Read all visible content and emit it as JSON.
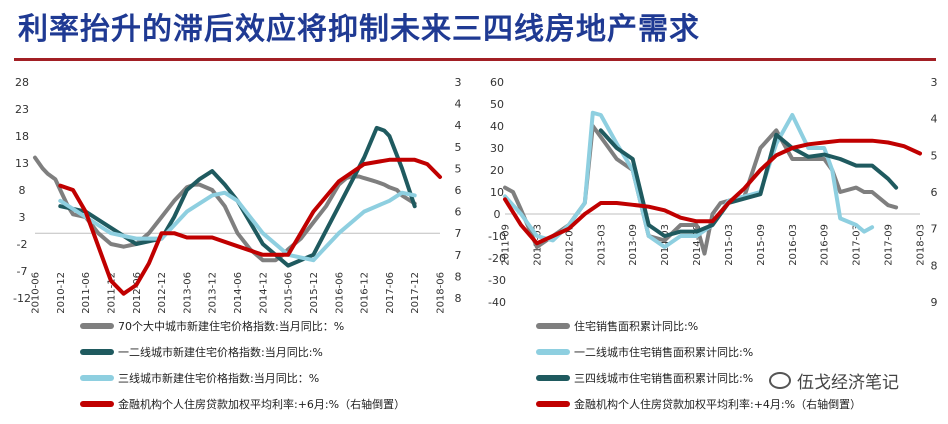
{
  "header": {
    "title": "利率抬升的滞后效应将抑制未来三四线房地产需求"
  },
  "watermark": {
    "text": "伍戈经济笔记",
    "icon": "wechat-icon"
  },
  "colors": {
    "grey": "#7f7f7f",
    "teal": "#1f5a5f",
    "light_blue": "#8ecfe0",
    "red": "#c00000"
  },
  "chart_data": [
    {
      "type": "line",
      "left_axis": {
        "ticks": [
          "28",
          "23",
          "18",
          "13",
          "8",
          "3",
          "-2",
          "-7",
          "-12"
        ],
        "ylim": [
          -12,
          28
        ]
      },
      "right_axis": {
        "ticks": [
          "3",
          "4",
          "4",
          "5",
          "5",
          "6",
          "6",
          "7",
          "7",
          "8",
          "8"
        ],
        "inverted": true,
        "ylim": [
          3,
          8
        ]
      },
      "x_ticks": [
        "2010-06",
        "2010-12",
        "2011-06",
        "2011-12",
        "2012-06",
        "2012-12",
        "2013-06",
        "2013-12",
        "2014-06",
        "2014-12",
        "2015-06",
        "2015-12",
        "2016-06",
        "2016-12",
        "2017-06",
        "2017-12",
        "2018-06"
      ],
      "series": [
        {
          "name": "70个大中城市新建住宅价格指数:当月同比：%",
          "color": "#7f7f7f",
          "axis": "left",
          "x": [
            0,
            0.6,
            1.0,
            1.6,
            2.0,
            2.6,
            3.0,
            4.0,
            5.0,
            6.0,
            7.0,
            8.0,
            9.0,
            10.0,
            11.0,
            11.6,
            12.0,
            12.6,
            13.0,
            14.0,
            15.0,
            16.0,
            17.0,
            18.0,
            19.0,
            19.6,
            20.0,
            21.0,
            22.0,
            23.0,
            24.0,
            24.6,
            25.0,
            25.6,
            26.0,
            26.6,
            27.0,
            27.6,
            28.0,
            28.6,
            29.0,
            30.0
          ],
          "y": [
            14,
            12,
            11,
            10,
            8,
            5,
            3.5,
            3,
            0,
            -2,
            -2.5,
            -2,
            0,
            3,
            6,
            7.5,
            8.5,
            9.0,
            9,
            8,
            5,
            0,
            -3,
            -5,
            -5,
            -4,
            -3,
            -1,
            2,
            5,
            9,
            10.2,
            10.5,
            10.5,
            10.2,
            9.8,
            9.5,
            9,
            8.5,
            8,
            7,
            5.5
          ]
        },
        {
          "name": "一二线城市新建住宅价格指数:当月同比:%",
          "color": "#1f5a5f",
          "axis": "left",
          "x": [
            2,
            4,
            6,
            8,
            10,
            11,
            12,
            13,
            14,
            15,
            16,
            18,
            20,
            22,
            24,
            26,
            27,
            27.6,
            28,
            29,
            30
          ],
          "y": [
            5,
            4,
            1,
            -2,
            -1,
            3,
            8,
            10,
            11.5,
            9,
            6,
            -2,
            -6,
            -4,
            5,
            14,
            19.5,
            19,
            18,
            12,
            5
          ]
        },
        {
          "name": "三线城市新建住宅价格指数:当月同比：%",
          "color": "#8ecfe0",
          "axis": "left",
          "x": [
            2,
            4,
            6,
            8,
            10,
            12,
            14,
            15,
            16,
            18,
            20,
            22,
            24,
            26,
            28,
            29,
            30
          ],
          "y": [
            6,
            3,
            0,
            -1,
            -1,
            4,
            7,
            7.5,
            6,
            0,
            -4,
            -5,
            0,
            4,
            6,
            7.5,
            7
          ]
        },
        {
          "name": "金融机构个人住房贷款加权平均利率:+6月:%（右轴倒置）",
          "color": "#c00000",
          "axis": "right",
          "x": [
            2,
            3,
            4,
            5,
            6,
            7,
            8,
            9,
            10,
            11,
            12,
            14,
            16,
            18,
            20,
            21,
            22,
            24,
            26,
            28,
            30,
            31,
            32
          ],
          "y": [
            5.4,
            5.5,
            6.0,
            6.8,
            7.6,
            7.9,
            7.7,
            7.2,
            6.5,
            6.5,
            6.6,
            6.6,
            6.8,
            7.0,
            7.0,
            6.5,
            6.0,
            5.3,
            4.9,
            4.8,
            4.8,
            4.9,
            5.2
          ]
        }
      ]
    },
    {
      "type": "line",
      "left_axis": {
        "ticks": [
          "60",
          "50",
          "40",
          "30",
          "20",
          "10",
          "0",
          "-10",
          "-20",
          "-30",
          "-40"
        ],
        "ylim": [
          -40,
          60
        ]
      },
      "right_axis": {
        "ticks": [
          "3",
          "4",
          "5",
          "6",
          "7",
          "8",
          "9"
        ],
        "inverted": true,
        "ylim": [
          3,
          9
        ]
      },
      "x_ticks": [
        "2011-09",
        "2012-03",
        "2012-09",
        "2013-03",
        "2013-09",
        "2014-03",
        "2014-09",
        "2015-03",
        "2015-09",
        "2016-03",
        "2016-09",
        "2017-03",
        "2017-09",
        "2018-03"
      ],
      "series": [
        {
          "name": "住宅销售面积累计同比:%",
          "color": "#7f7f7f",
          "axis": "left",
          "x": [
            0,
            0.5,
            1.0,
            2.0,
            3.0,
            4.0,
            4.5,
            5.0,
            5.5,
            6.0,
            6.5,
            7.0,
            8.0,
            9.0,
            10.0,
            11.0,
            12.0,
            12.5,
            13.0,
            13.5,
            14.0,
            14.5,
            15.0,
            16.0,
            17.0,
            18.0,
            19.0,
            20.0,
            20.5,
            21.0,
            22.0,
            22.5,
            23.0,
            24.0,
            24.5
          ],
          "y": [
            12,
            10,
            2,
            -15,
            -10,
            -5,
            0,
            5,
            40,
            35,
            30,
            25,
            20,
            -10,
            -12,
            -5,
            -5,
            -18,
            0,
            5,
            6,
            7,
            8,
            30,
            38,
            25,
            25,
            25,
            20,
            10,
            12,
            10,
            10,
            4,
            3
          ]
        },
        {
          "name": "一二线城市住宅销售面积累计同比:%",
          "color": "#8ecfe0",
          "axis": "left",
          "x": [
            0,
            1,
            2,
            3,
            4,
            4.5,
            5.0,
            5.5,
            6.0,
            7.0,
            8.0,
            9.0,
            10.0,
            11.0,
            12.0,
            13.0,
            14.0,
            15.0,
            16.0,
            17.0,
            18.0,
            19.0,
            20.0,
            20.5,
            21.0,
            22.0,
            22.5,
            23.0
          ],
          "y": [
            8,
            0,
            -10,
            -12,
            -5,
            0,
            5,
            46,
            45,
            32,
            20,
            -10,
            -15,
            -10,
            -10,
            -5,
            6,
            8,
            10,
            32,
            45,
            30,
            30,
            20,
            -2,
            -5,
            -8,
            -6
          ]
        },
        {
          "name": "三四线城市住宅销售面积累计同比:%",
          "color": "#1f5a5f",
          "axis": "left",
          "x": [
            6,
            7,
            8,
            9,
            10,
            11,
            12,
            13,
            14,
            15,
            16,
            17,
            18,
            19,
            20,
            21,
            22,
            23,
            24,
            24.5
          ],
          "y": [
            38,
            30,
            25,
            -5,
            -10,
            -8,
            -8,
            -5,
            5,
            7,
            9,
            36,
            30,
            26,
            27,
            25,
            22,
            22,
            16,
            12
          ]
        },
        {
          "name": "金融机构个人住房贷款加权平均利率:+4月:%（右轴倒置）",
          "color": "#c00000",
          "axis": "right",
          "x": [
            0,
            1,
            2,
            3,
            4,
            5,
            6,
            7,
            8,
            9,
            10,
            11,
            12,
            13,
            14,
            15,
            16,
            17,
            18,
            19,
            20,
            21,
            22,
            23,
            24,
            25,
            26
          ],
          "y": [
            6.2,
            6.9,
            7.4,
            7.2,
            7.0,
            6.6,
            6.3,
            6.3,
            6.35,
            6.4,
            6.5,
            6.7,
            6.8,
            6.8,
            6.3,
            5.9,
            5.4,
            5.0,
            4.8,
            4.7,
            4.65,
            4.6,
            4.6,
            4.6,
            4.65,
            4.75,
            4.95
          ]
        }
      ]
    }
  ]
}
